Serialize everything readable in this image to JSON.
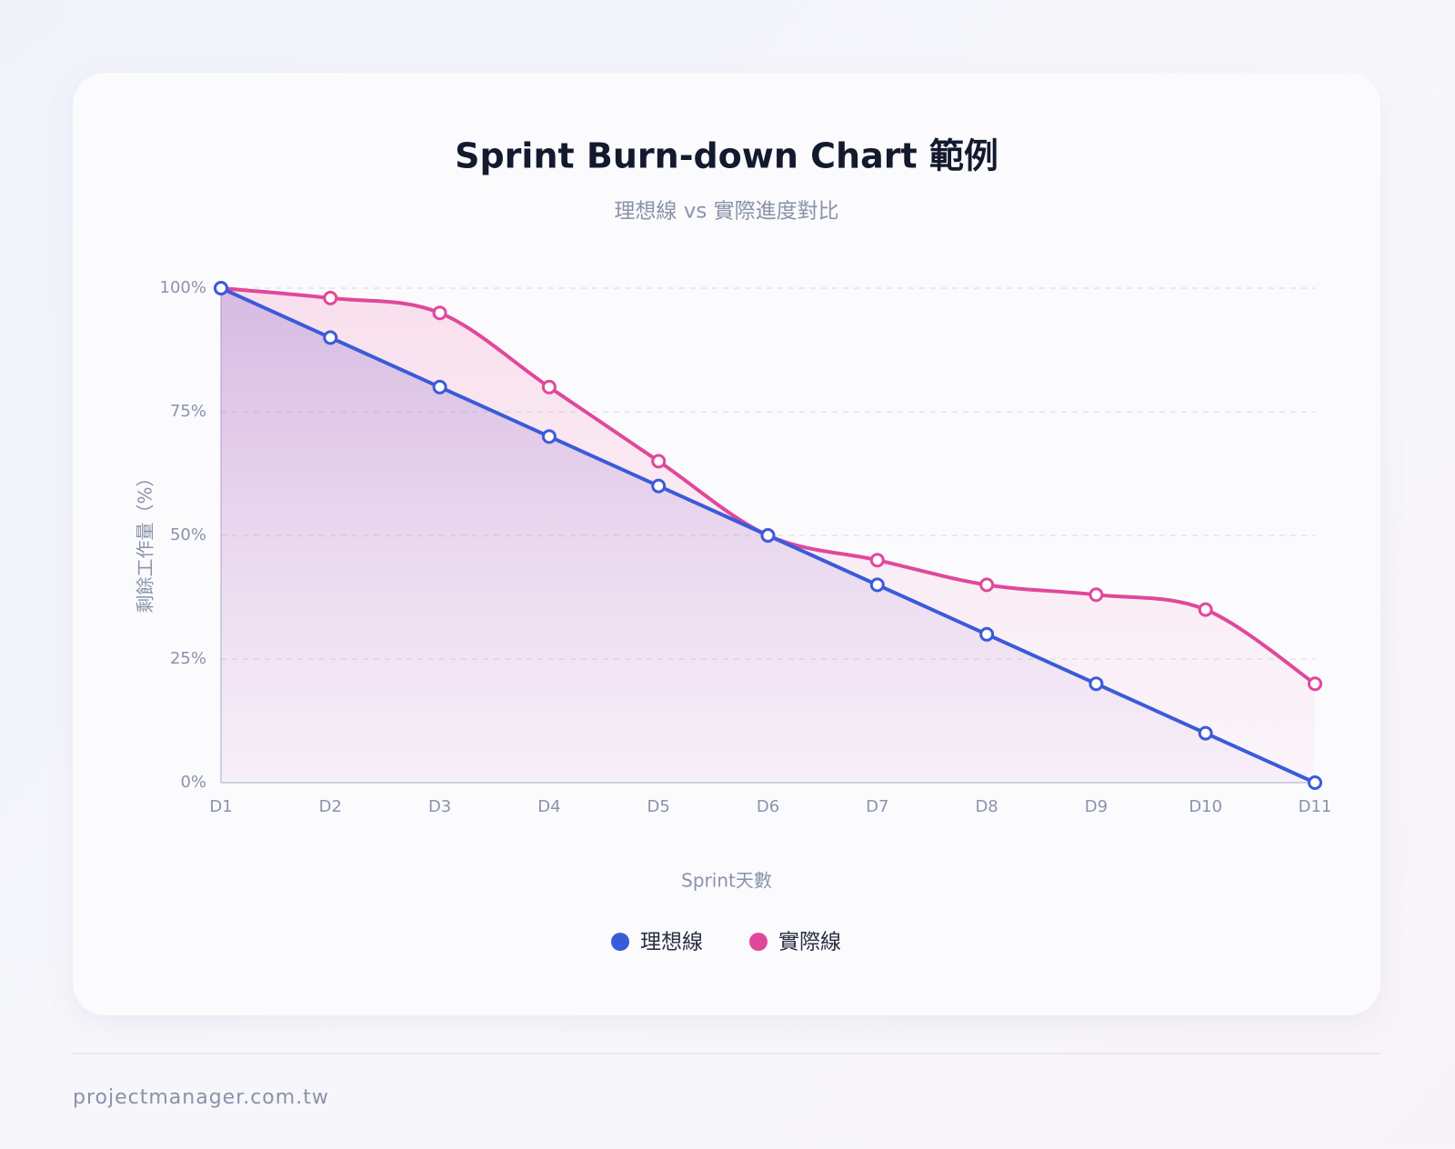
{
  "chart_data": {
    "type": "line",
    "title": "Sprint Burn-down Chart 範例",
    "subtitle": "理想線 vs 實際進度對比",
    "xlabel": "Sprint天數",
    "ylabel": "剩餘工作量（%）",
    "categories": [
      "D1",
      "D2",
      "D3",
      "D4",
      "D5",
      "D6",
      "D7",
      "D8",
      "D9",
      "D10",
      "D11"
    ],
    "series": [
      {
        "name": "理想線",
        "color": "#3a5bd9",
        "values": [
          100,
          90,
          80,
          70,
          60,
          50,
          40,
          30,
          20,
          10,
          0
        ]
      },
      {
        "name": "實際線",
        "color": "#e0489a",
        "values": [
          100,
          98,
          95,
          80,
          65,
          50,
          45,
          40,
          38,
          35,
          20
        ]
      }
    ],
    "ylim": [
      0,
      100
    ],
    "yticks": [
      {
        "value": 0,
        "label": "0%"
      },
      {
        "value": 25,
        "label": "25%"
      },
      {
        "value": 50,
        "label": "50%"
      },
      {
        "value": 75,
        "label": "75%"
      },
      {
        "value": 100,
        "label": "100%"
      }
    ],
    "grid": true,
    "legend": "bottom"
  },
  "footer": "projectmanager.com.tw"
}
